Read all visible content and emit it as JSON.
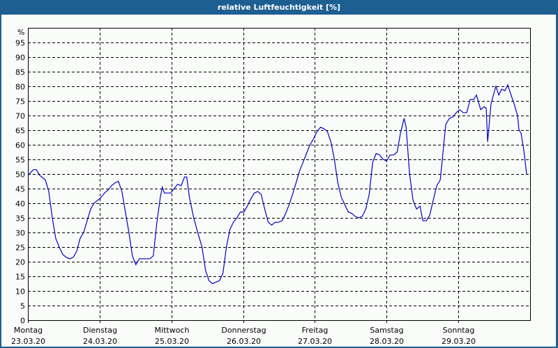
{
  "window": {
    "title": "relative Luftfeuchtigkeit [%]"
  },
  "colors": {
    "titlebar": "#1d5f91",
    "line": "#0000c8",
    "background": "#fafcfa",
    "grid": "#000000"
  },
  "chart_data": {
    "type": "line",
    "title": "relative Luftfeuchtigkeit [%]",
    "xlabel": "",
    "ylabel": "%",
    "ylim": [
      0,
      100
    ],
    "yticks": [
      0,
      5,
      10,
      15,
      20,
      25,
      30,
      35,
      40,
      45,
      50,
      55,
      60,
      65,
      70,
      75,
      80,
      85,
      90,
      95
    ],
    "grid": true,
    "x_categories": [
      {
        "day": "Montag",
        "date": "23.03.20"
      },
      {
        "day": "Dienstag",
        "date": "24.03.20"
      },
      {
        "day": "Mittwoch",
        "date": "25.03.20"
      },
      {
        "day": "Donnerstag",
        "date": "26.03.20"
      },
      {
        "day": "Freitag",
        "date": "27.03.20"
      },
      {
        "day": "Samstag",
        "date": "28.03.20"
      },
      {
        "day": "Sonntag",
        "date": "29.03.20"
      }
    ],
    "x_unit": "days since 23.03.20 00:00",
    "series": [
      {
        "name": "relative Luftfeuchtigkeit",
        "points": [
          [
            0.0,
            49.5
          ],
          [
            0.078,
            51.5
          ],
          [
            0.117,
            51.5
          ],
          [
            0.165,
            49.5
          ],
          [
            0.243,
            48
          ],
          [
            0.291,
            44
          ],
          [
            0.34,
            35
          ],
          [
            0.388,
            28
          ],
          [
            0.437,
            25
          ],
          [
            0.485,
            22.5
          ],
          [
            0.534,
            21.5
          ],
          [
            0.583,
            21
          ],
          [
            0.631,
            21.5
          ],
          [
            0.68,
            23.5
          ],
          [
            0.728,
            28
          ],
          [
            0.777,
            30
          ],
          [
            0.825,
            34
          ],
          [
            0.874,
            38
          ],
          [
            0.922,
            40
          ],
          [
            0.971,
            41
          ],
          [
            1.019,
            42
          ],
          [
            1.068,
            43.5
          ],
          [
            1.117,
            44.5
          ],
          [
            1.165,
            46
          ],
          [
            1.214,
            47
          ],
          [
            1.262,
            47.5
          ],
          [
            1.311,
            44
          ],
          [
            1.359,
            37
          ],
          [
            1.408,
            30
          ],
          [
            1.456,
            22
          ],
          [
            1.505,
            19
          ],
          [
            1.553,
            21
          ],
          [
            1.602,
            21
          ],
          [
            1.65,
            21
          ],
          [
            1.699,
            21
          ],
          [
            1.748,
            22
          ],
          [
            1.796,
            33
          ],
          [
            1.845,
            42
          ],
          [
            1.874,
            45.5
          ],
          [
            1.903,
            43.5
          ],
          [
            1.942,
            43.5
          ],
          [
            1.99,
            43.5
          ],
          [
            2.039,
            45
          ],
          [
            2.087,
            46.5
          ],
          [
            2.136,
            46
          ],
          [
            2.184,
            49
          ],
          [
            2.214,
            49
          ],
          [
            2.252,
            42
          ],
          [
            2.311,
            35
          ],
          [
            2.379,
            29
          ],
          [
            2.427,
            25
          ],
          [
            2.476,
            17
          ],
          [
            2.524,
            13.5
          ],
          [
            2.573,
            12.5
          ],
          [
            2.621,
            13
          ],
          [
            2.67,
            13.5
          ],
          [
            2.718,
            16
          ],
          [
            2.767,
            25
          ],
          [
            2.816,
            31
          ],
          [
            2.864,
            33.5
          ],
          [
            2.913,
            35
          ],
          [
            2.961,
            37
          ],
          [
            3.01,
            37
          ],
          [
            3.058,
            39
          ],
          [
            3.107,
            41.5
          ],
          [
            3.155,
            43.5
          ],
          [
            3.204,
            44
          ],
          [
            3.252,
            43
          ],
          [
            3.301,
            38
          ],
          [
            3.35,
            33.5
          ],
          [
            3.398,
            32.5
          ],
          [
            3.447,
            33.5
          ],
          [
            3.495,
            33.5
          ],
          [
            3.544,
            34
          ],
          [
            3.592,
            36.5
          ],
          [
            3.641,
            39.5
          ],
          [
            3.689,
            43
          ],
          [
            3.738,
            47
          ],
          [
            3.786,
            51
          ],
          [
            3.835,
            54
          ],
          [
            3.883,
            57
          ],
          [
            3.932,
            60
          ],
          [
            3.981,
            62
          ],
          [
            4.029,
            64.5
          ],
          [
            4.078,
            66
          ],
          [
            4.126,
            65.5
          ],
          [
            4.175,
            64.5
          ],
          [
            4.223,
            61
          ],
          [
            4.272,
            55
          ],
          [
            4.32,
            47
          ],
          [
            4.369,
            42
          ],
          [
            4.417,
            39.5
          ],
          [
            4.466,
            37
          ],
          [
            4.515,
            36.5
          ],
          [
            4.563,
            35.5
          ],
          [
            4.612,
            35
          ],
          [
            4.66,
            35.5
          ],
          [
            4.709,
            38
          ],
          [
            4.757,
            43
          ],
          [
            4.806,
            54
          ],
          [
            4.854,
            57
          ],
          [
            4.903,
            56.5
          ],
          [
            4.951,
            55
          ],
          [
            5.0,
            54.5
          ],
          [
            5.049,
            56.5
          ],
          [
            5.097,
            56.5
          ],
          [
            5.146,
            57.5
          ],
          [
            5.194,
            64
          ],
          [
            5.243,
            69
          ],
          [
            5.272,
            66
          ],
          [
            5.32,
            50
          ],
          [
            5.369,
            41
          ],
          [
            5.417,
            38
          ],
          [
            5.466,
            39
          ],
          [
            5.505,
            34
          ],
          [
            5.553,
            34
          ],
          [
            5.602,
            36
          ],
          [
            5.65,
            41
          ],
          [
            5.699,
            46
          ],
          [
            5.748,
            48
          ],
          [
            5.796,
            60
          ],
          [
            5.825,
            67
          ],
          [
            5.874,
            69
          ],
          [
            5.922,
            69.5
          ],
          [
            5.971,
            71
          ],
          [
            6.019,
            72
          ],
          [
            6.068,
            71
          ],
          [
            6.117,
            71
          ],
          [
            6.165,
            75.5
          ],
          [
            6.214,
            75.5
          ],
          [
            6.252,
            77
          ],
          [
            6.311,
            72
          ],
          [
            6.359,
            73
          ],
          [
            6.388,
            72.5
          ],
          [
            6.408,
            61
          ],
          [
            6.456,
            74
          ],
          [
            6.505,
            78.5
          ],
          [
            6.524,
            80
          ],
          [
            6.563,
            77
          ],
          [
            6.602,
            79
          ],
          [
            6.65,
            78.5
          ],
          [
            6.689,
            80.5
          ],
          [
            6.728,
            77.5
          ],
          [
            6.777,
            74
          ],
          [
            6.825,
            70
          ],
          [
            6.845,
            65
          ],
          [
            6.874,
            64
          ],
          [
            6.913,
            58
          ],
          [
            6.951,
            50
          ]
        ]
      }
    ]
  }
}
